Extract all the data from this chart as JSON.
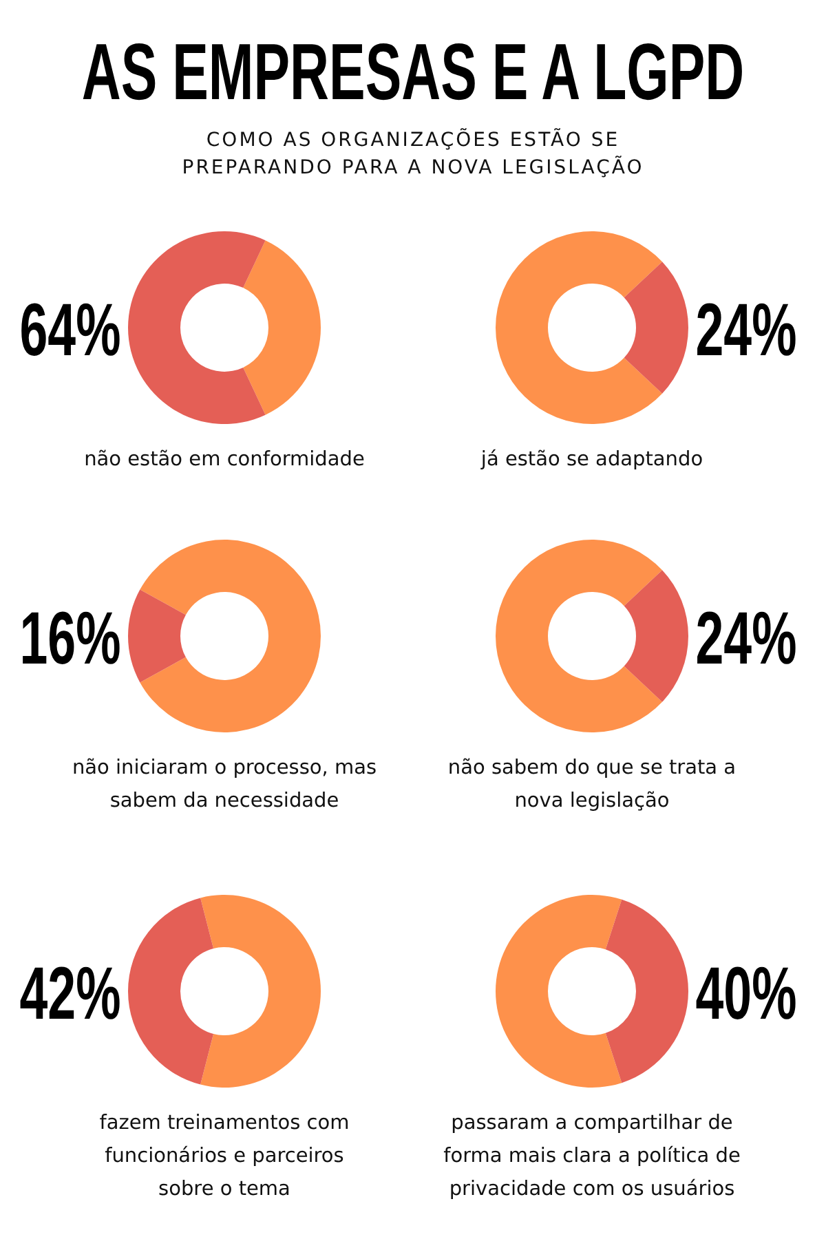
{
  "chart_data": [
    {
      "type": "donut",
      "title": "AS EMPRESAS E A LGPD",
      "subtitle": "COMO AS ORGANIZAÇÕES ESTÃO SE\nPREPARANDO PARA A NOVA LEGISLAÇÃO",
      "xlabel": "não estão em conformidade",
      "categories": [
        null,
        null
      ],
      "values": [
        36,
        64
      ],
      "colors": [
        "#fe914b",
        "#e45f56"
      ],
      "value_labels": [
        null,
        "64%"
      ]
    },
    {
      "type": "donut",
      "xlabel": "já estão se adaptando",
      "categories": [
        null,
        null
      ],
      "values": [
        76,
        24
      ],
      "colors": [
        "#fe914b",
        "#e45f56"
      ],
      "value_labels": [
        null,
        "24%"
      ]
    },
    {
      "type": "donut",
      "xlabel": "não iniciaram o processo, mas\nsabem da necessidade",
      "categories": [
        null,
        null
      ],
      "values": [
        84,
        16
      ],
      "colors": [
        "#fe914b",
        "#e45f56"
      ],
      "value_labels": [
        null,
        "16%"
      ]
    },
    {
      "type": "donut",
      "xlabel": "não sabem do que se trata a\nnova legislação",
      "categories": [
        null,
        null
      ],
      "values": [
        76,
        24
      ],
      "colors": [
        "#fe914b",
        "#e45f56"
      ],
      "value_labels": [
        null,
        "24%"
      ]
    },
    {
      "type": "donut",
      "xlabel": "fazem treinamentos com\nfuncionários e parceiros\nsobre o tema",
      "categories": [
        null,
        null
      ],
      "values": [
        58,
        42
      ],
      "colors": [
        "#fe914b",
        "#e45f56"
      ],
      "value_labels": [
        null,
        "42%"
      ]
    },
    {
      "type": "donut",
      "xlabel": "passaram a compartilhar de\nforma mais clara a política de\nprivacidade com os usuários",
      "categories": [
        null,
        null
      ],
      "values": [
        60,
        40
      ],
      "colors": [
        "#fe914b",
        "#e45f56"
      ],
      "value_labels": [
        null,
        "40%"
      ]
    }
  ]
}
